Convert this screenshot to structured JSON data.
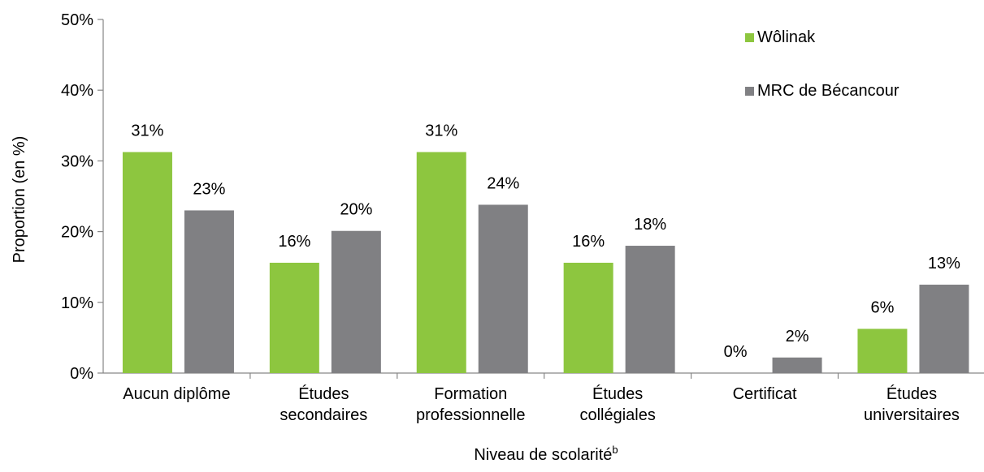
{
  "chart_data": {
    "type": "bar",
    "xlabel": "Niveau de scolarité",
    "xlabel_superscript": "b",
    "ylabel": "Proportion (en %)",
    "ylim": [
      0,
      50
    ],
    "yticks": [
      0,
      10,
      20,
      30,
      40,
      50
    ],
    "ytick_labels": [
      "0%",
      "10%",
      "20%",
      "30%",
      "40%",
      "50%"
    ],
    "grid": false,
    "legend_position": "top-right",
    "categories": [
      [
        "Aucun diplôme"
      ],
      [
        "Études",
        "secondaires"
      ],
      [
        "Formation",
        "professionnelle"
      ],
      [
        "Études",
        "collégiales"
      ],
      [
        "Certificat"
      ],
      [
        "Études",
        "universitaires"
      ]
    ],
    "series": [
      {
        "name": "Wôlinak",
        "color": "#8dc63f",
        "values": [
          31.25,
          15.6,
          31.25,
          15.6,
          0,
          6.25
        ],
        "labels": [
          "31%",
          "16%",
          "31%",
          "16%",
          "0%",
          "6%"
        ]
      },
      {
        "name": "MRC de Bécancour",
        "color": "#808083",
        "values": [
          23.0,
          20.1,
          23.8,
          18.0,
          2.2,
          12.5
        ],
        "labels": [
          "23%",
          "20%",
          "24%",
          "18%",
          "2%",
          "13%"
        ]
      }
    ]
  }
}
